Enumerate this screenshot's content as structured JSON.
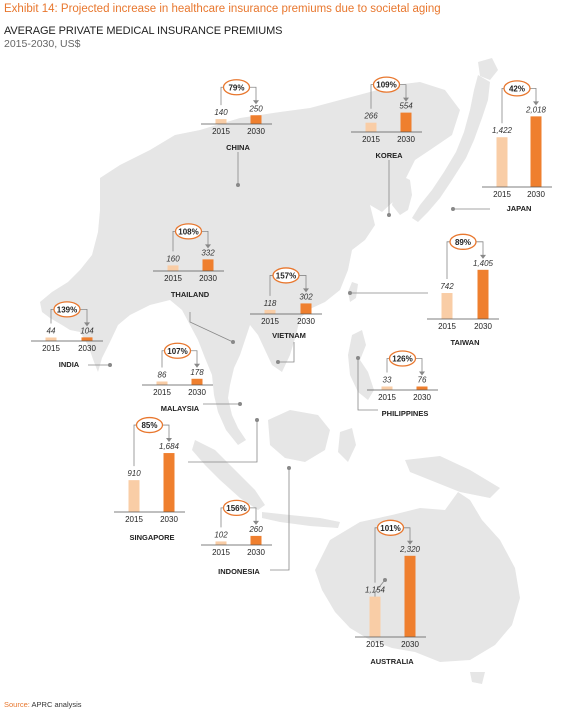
{
  "header": {
    "exhibit_title": "Exhibit 14: Projected increase in healthcare insurance premiums due to societal aging",
    "title": "AVERAGE PRIVATE MEDICAL INSURANCE PREMIUMS",
    "subtitle": "2015-2030, US$"
  },
  "footer": {
    "source_label": "Source:",
    "source_text": "APRC analysis"
  },
  "colors": {
    "bar_2015": "#f9cda6",
    "bar_2030": "#ef7f2e",
    "accent": "#e8772e",
    "map": "#e6e6e6",
    "leader": "#888888"
  },
  "chart_data": {
    "type": "bar",
    "title": "AVERAGE PRIVATE MEDICAL INSURANCE PREMIUMS",
    "subtitle": "2015-2030, US$",
    "categories": [
      "2015",
      "2030"
    ],
    "series": [
      {
        "country": "CHINA",
        "values": [
          140,
          250
        ],
        "labels": [
          "140",
          "250"
        ],
        "increase": "79%"
      },
      {
        "country": "KOREA",
        "values": [
          266,
          554
        ],
        "labels": [
          "266",
          "554"
        ],
        "increase": "109%"
      },
      {
        "country": "JAPAN",
        "values": [
          1422,
          2018
        ],
        "labels": [
          "1,422",
          "2,018"
        ],
        "increase": "42%"
      },
      {
        "country": "THAILAND",
        "values": [
          160,
          332
        ],
        "labels": [
          "160",
          "332"
        ],
        "increase": "108%"
      },
      {
        "country": "INDIA",
        "values": [
          44,
          104
        ],
        "labels": [
          "44",
          "104"
        ],
        "increase": "139%"
      },
      {
        "country": "VIETNAM",
        "values": [
          118,
          302
        ],
        "labels": [
          "118",
          "302"
        ],
        "increase": "157%"
      },
      {
        "country": "TAIWAN",
        "values": [
          742,
          1405
        ],
        "labels": [
          "742",
          "1,405"
        ],
        "increase": "89%"
      },
      {
        "country": "MALAYSIA",
        "values": [
          86,
          178
        ],
        "labels": [
          "86",
          "178"
        ],
        "increase": "107%"
      },
      {
        "country": "PHILIPPINES",
        "values": [
          33,
          76
        ],
        "labels": [
          "33",
          "76"
        ],
        "increase": "126%"
      },
      {
        "country": "SINGAPORE",
        "values": [
          910,
          1684
        ],
        "labels": [
          "910",
          "1,684"
        ],
        "increase": "85%"
      },
      {
        "country": "INDONESIA",
        "values": [
          102,
          260
        ],
        "labels": [
          "102",
          "260"
        ],
        "increase": "156%"
      },
      {
        "country": "AUSTRALIA",
        "values": [
          1154,
          2320
        ],
        "labels": [
          "1,154",
          "2,320"
        ],
        "increase": "101%"
      }
    ]
  }
}
